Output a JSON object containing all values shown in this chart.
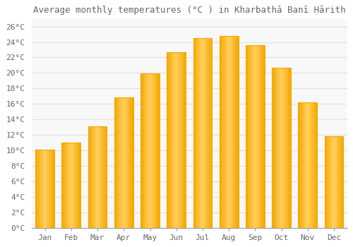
{
  "title": "Average monthly temperatures (°C ) in Kharbathā Banī Ḥārith",
  "months": [
    "Jan",
    "Feb",
    "Mar",
    "Apr",
    "May",
    "Jun",
    "Jul",
    "Aug",
    "Sep",
    "Oct",
    "Nov",
    "Dec"
  ],
  "values": [
    10.1,
    11.0,
    13.1,
    16.8,
    19.9,
    22.7,
    24.5,
    24.8,
    23.6,
    20.7,
    16.2,
    11.8
  ],
  "bar_color_center": "#FFD060",
  "bar_color_edge": "#F5A800",
  "background_color": "#ffffff",
  "plot_bg_color": "#f8f8f8",
  "grid_color": "#e0e0e0",
  "ytick_labels": [
    "0°C",
    "2°C",
    "4°C",
    "6°C",
    "8°C",
    "10°C",
    "12°C",
    "14°C",
    "16°C",
    "18°C",
    "20°C",
    "22°C",
    "24°C",
    "26°C"
  ],
  "ytick_values": [
    0,
    2,
    4,
    6,
    8,
    10,
    12,
    14,
    16,
    18,
    20,
    22,
    24,
    26
  ],
  "ylim": [
    0,
    27
  ],
  "title_fontsize": 9,
  "tick_fontsize": 8,
  "font_color": "#666666",
  "spine_color": "#999999"
}
